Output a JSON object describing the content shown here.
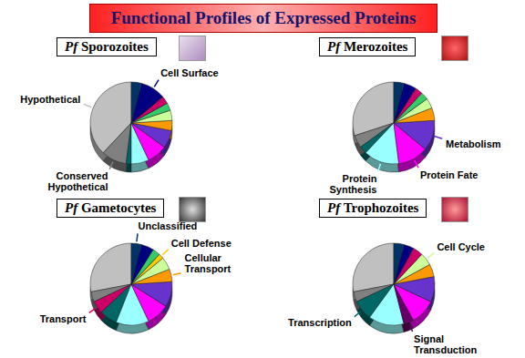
{
  "title": "Functional Profiles of Expressed Proteins",
  "chart_data": [
    {
      "type": "pie",
      "title": "Pf Sporozoites",
      "categories": [
        "Hypothetical",
        "Conserved Hypothetical",
        null,
        null,
        null,
        null,
        null,
        null,
        null,
        null,
        "Cell Surface",
        null
      ],
      "values": [
        38,
        10,
        2,
        7,
        8,
        7,
        4,
        4,
        3,
        3,
        10,
        4
      ],
      "colors": [
        "#c0c0c0",
        "#808080",
        "#006666",
        "#99ffff",
        "#ff00ff",
        "#6633cc",
        "#ff9900",
        "#ccff99",
        "#33cc66",
        "#cc0066",
        "#000080",
        "#003366"
      ]
    },
    {
      "type": "pie",
      "title": "Pf Merozoites",
      "categories": [
        null,
        null,
        null,
        "Protein Synthesis",
        "Protein Fate",
        "Metabolism",
        null,
        null,
        null,
        null,
        null,
        null
      ],
      "values": [
        30,
        5,
        3,
        14,
        12,
        12,
        5,
        4,
        3,
        3,
        5,
        4
      ],
      "colors": [
        "#c0c0c0",
        "#808080",
        "#006666",
        "#99ffff",
        "#ff00ff",
        "#6633cc",
        "#ff9900",
        "#ccff99",
        "#33cc66",
        "#cc0066",
        "#000080",
        "#003366"
      ]
    },
    {
      "type": "pie",
      "title": "Pf Gametocytes",
      "categories": [
        null,
        null,
        "Transport",
        null,
        null,
        null,
        null,
        "Cellular Transport",
        null,
        "Cell Defense",
        null,
        null,
        "Unclassified"
      ],
      "values": [
        28,
        4,
        5,
        7,
        13,
        9,
        10,
        5,
        5,
        2,
        3,
        5,
        4
      ],
      "colors": [
        "#c0c0c0",
        "#808080",
        "#cc0066",
        "#006666",
        "#99ffff",
        "#ff00ff",
        "#6633cc",
        "#ff9900",
        "#ccff99",
        "#ffcc00",
        "#33cc66",
        "#000080",
        "#003366"
      ]
    },
    {
      "type": "pie",
      "title": "Pf Trophozoites",
      "categories": [
        null,
        null,
        "Transcription",
        null,
        "Signal Transduction",
        null,
        null,
        null,
        "Cell Cycle",
        null,
        null,
        null
      ],
      "values": [
        28,
        4,
        8,
        14,
        4,
        10,
        10,
        5,
        5,
        4,
        4,
        4
      ],
      "colors": [
        "#c0c0c0",
        "#808080",
        "#006666",
        "#99ffff",
        "#660066",
        "#ff00ff",
        "#6633cc",
        "#ff9900",
        "#ccff99",
        "#cc0066",
        "#000080",
        "#003366"
      ]
    }
  ]
}
